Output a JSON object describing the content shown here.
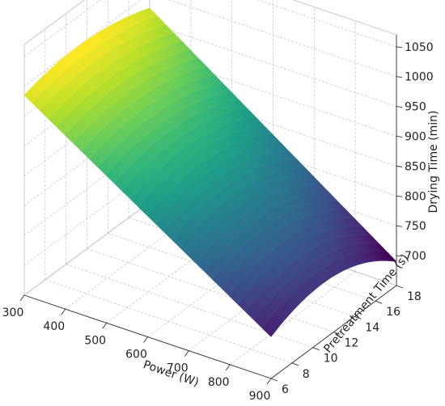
{
  "chart_data": {
    "type": "surface",
    "title": "",
    "xlabel": "Power (W)",
    "ylabel": "Pretreatment Time (s)",
    "zlabel": "Drying Time (min)",
    "xlim": [
      300,
      900
    ],
    "ylim": [
      6,
      18
    ],
    "zlim": [
      650,
      1070
    ],
    "x_ticks": [
      "300",
      "400",
      "500",
      "600",
      "700",
      "800",
      "900"
    ],
    "y_ticks": [
      "6",
      "8",
      "10",
      "12",
      "14",
      "16",
      "18"
    ],
    "z_ticks": [
      "700",
      "750",
      "800",
      "850",
      "900",
      "950",
      "1000",
      "1050"
    ],
    "colormap": "viridis",
    "grid": true,
    "surface_corners": {
      "power_300_pretreat_6": 985,
      "power_300_pretreat_18": 975,
      "power_900_pretreat_6": 720,
      "power_900_pretreat_18": 690
    },
    "surface_ridge": {
      "pretreat_peak": 11,
      "power_300_peak": 1000,
      "power_900_peak": 745
    }
  }
}
